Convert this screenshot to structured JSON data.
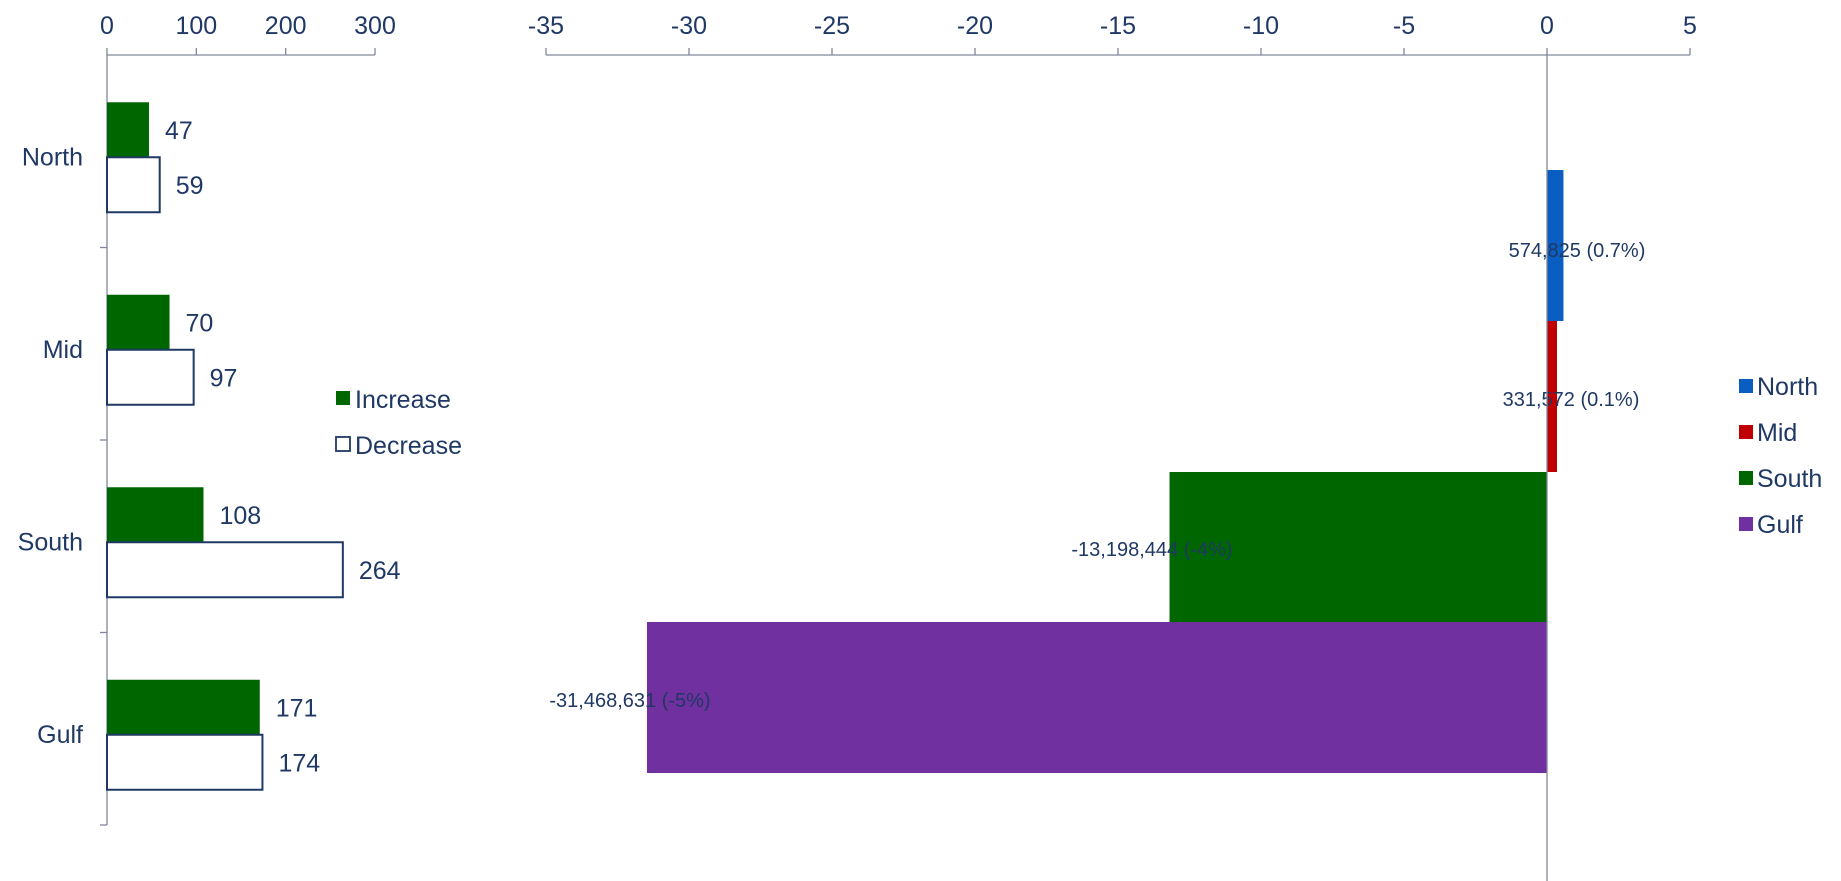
{
  "chart_data": [
    {
      "type": "bar",
      "orientation": "horizontal",
      "categories": [
        "North",
        "Mid",
        "South",
        "Gulf"
      ],
      "series": [
        {
          "name": "Increase",
          "values": [
            47,
            70,
            108,
            171
          ],
          "color": "#006600"
        },
        {
          "name": "Decrease",
          "values": [
            59,
            97,
            264,
            174
          ],
          "color": "#ffffff",
          "stroke": "#1f3864"
        }
      ],
      "xlim": [
        0,
        300
      ],
      "xticks": [
        0,
        100,
        200,
        300
      ],
      "xtick_labels": [
        "0",
        "100",
        "200",
        "300"
      ],
      "x_axis_position": "top",
      "legend_position": "right",
      "grid": false
    },
    {
      "type": "bar",
      "orientation": "horizontal",
      "categories": [
        "North",
        "Mid",
        "South",
        "Gulf"
      ],
      "values": [
        0.574825,
        0.331572,
        -13.198444,
        -31.468631
      ],
      "data_labels": [
        "574,825 (0.7%)",
        "331,572 (0.1%)",
        "-13,198,444 (-4%)",
        "-31,468,631 (-5%)"
      ],
      "colors": [
        "#0a5ec2",
        "#c00000",
        "#006600",
        "#7030a0"
      ],
      "legend": [
        "North",
        "Mid",
        "South",
        "Gulf"
      ],
      "xlim": [
        -35,
        5
      ],
      "xticks": [
        -35,
        -30,
        -25,
        -20,
        -15,
        -10,
        -5,
        0,
        5
      ],
      "xtick_labels": [
        "-35",
        "-30",
        "-25",
        "-20",
        "-15",
        "-10",
        "-5",
        "0",
        "5"
      ],
      "x_axis_position": "top",
      "legend_position": "right",
      "grid": false
    }
  ]
}
